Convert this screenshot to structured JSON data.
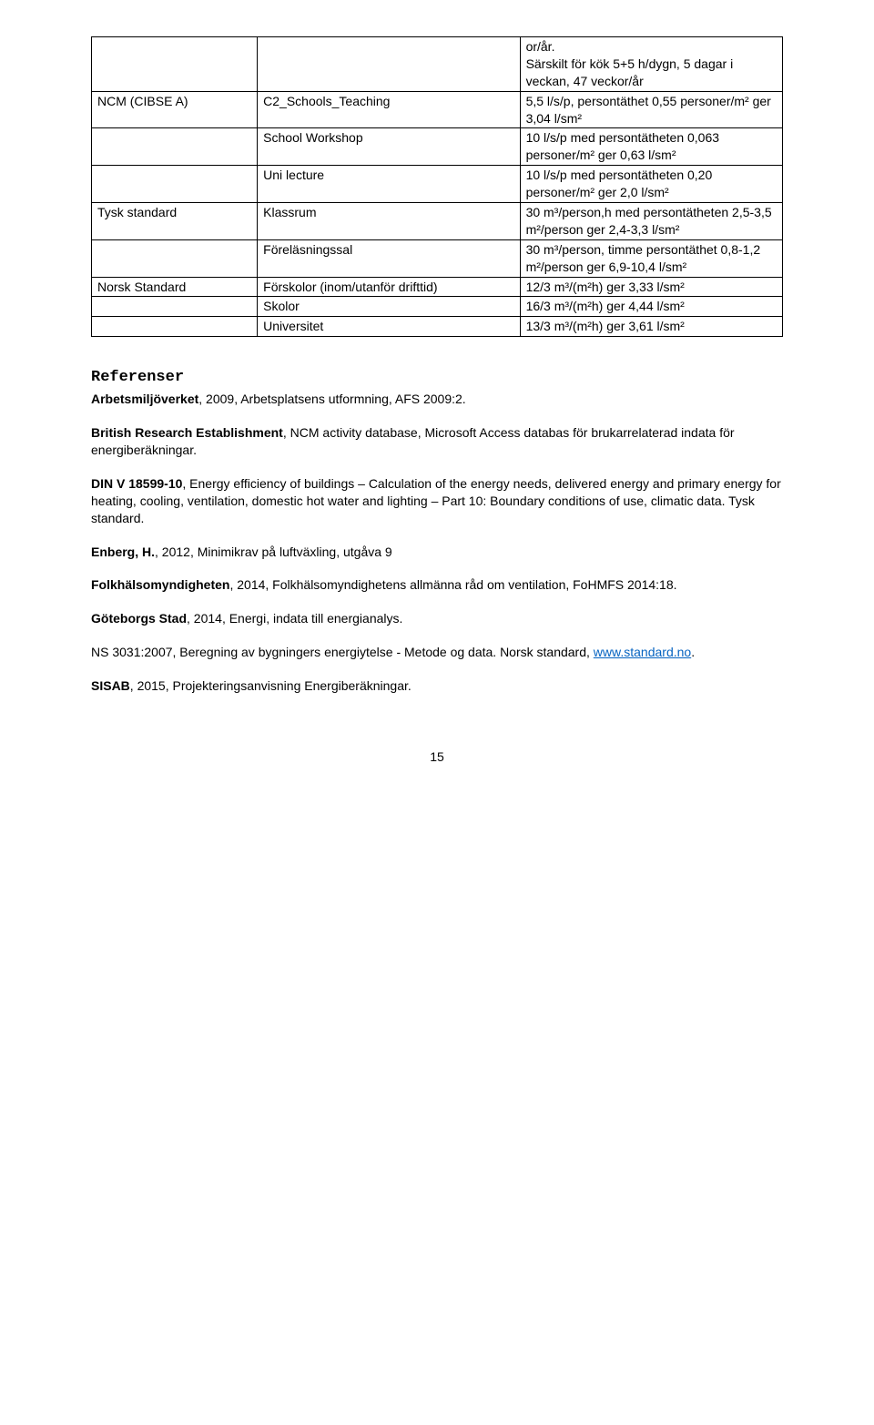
{
  "table": {
    "rows": [
      {
        "c1": "",
        "c2": "",
        "c3": "or/år.\nSärskilt för kök 5+5 h/dygn, 5 dagar i veckan, 47 veckor/år"
      },
      {
        "c1": "NCM (CIBSE A)",
        "c2": "C2_Schools_Teaching",
        "c3": "5,5 l/s/p, persontäthet 0,55 personer/m² ger 3,04 l/sm²"
      },
      {
        "c1": "",
        "c2": "School Workshop",
        "c3": "10 l/s/p med persontätheten 0,063 personer/m² ger 0,63 l/sm²"
      },
      {
        "c1": "",
        "c2": "Uni lecture",
        "c3": "10 l/s/p med persontätheten 0,20 personer/m² ger 2,0 l/sm²"
      },
      {
        "c1": "Tysk standard",
        "c2": "Klassrum",
        "c3": "30 m³/person,h med persontätheten 2,5-3,5 m²/person ger 2,4-3,3 l/sm²"
      },
      {
        "c1": "",
        "c2": "Föreläsningssal",
        "c3": "30 m³/person, timme persontäthet 0,8-1,2 m²/person ger 6,9-10,4 l/sm²"
      },
      {
        "c1": "Norsk Standard",
        "c2": "Förskolor (inom/utanför drifttid)",
        "c3": "12/3 m³/(m²h) ger 3,33 l/sm²"
      },
      {
        "c1": "",
        "c2": "Skolor",
        "c3": "16/3 m³/(m²h) ger 4,44 l/sm²"
      },
      {
        "c1": "",
        "c2": "Universitet",
        "c3": "13/3 m³/(m²h) ger 3,61 l/sm²"
      }
    ]
  },
  "references": {
    "heading": "Referenser",
    "items": [
      {
        "bold": "Arbetsmiljöverket",
        "rest": ", 2009, Arbetsplatsens utformning, AFS 2009:2."
      },
      {
        "bold": "British Research Establishment",
        "rest": ", NCM activity database, Microsoft Access databas för brukarrelaterad indata för energiberäkningar."
      },
      {
        "bold": "DIN V 18599-10",
        "rest": ", Energy efficiency of buildings – Calculation of the energy needs, delivered energy and primary energy for heating, cooling, ventilation, domestic hot water and lighting – Part 10: Boundary conditions of use, climatic data. Tysk standard."
      },
      {
        "bold": "Enberg, H.",
        "rest": ", 2012, Minimikrav på luftväxling, utgåva 9"
      },
      {
        "bold": "Folkhälsomyndigheten",
        "rest": ", 2014, Folkhälsomyndighetens allmänna råd om ventilation, FoHMFS 2014:18."
      },
      {
        "bold": "Göteborgs Stad",
        "rest": ", 2014, Energi, indata till energianalys."
      }
    ],
    "ns_line": "NS 3031:2007, Beregning av bygningers energiytelse - Metode og data. Norsk standard, ",
    "ns_link": "www.standard.no",
    "ns_after": ".",
    "sisab_bold": "SISAB",
    "sisab_rest": ", 2015, Projekteringsanvisning Energiberäkningar."
  },
  "page_number": "15"
}
